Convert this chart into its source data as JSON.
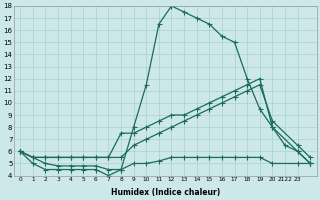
{
  "xlabel": "Humidex (Indice chaleur)",
  "bg_color": "#cde8e8",
  "line_color": "#1a6b5e",
  "grid_color": "#aacfcf",
  "ylim": [
    4,
    18
  ],
  "xlim": [
    -0.5,
    23.5
  ],
  "yticks": [
    4,
    5,
    6,
    7,
    8,
    9,
    10,
    11,
    12,
    13,
    14,
    15,
    16,
    17,
    18
  ],
  "xtick_labels": [
    "0",
    "1",
    "2",
    "3",
    "4",
    "5",
    "6",
    "7",
    "8",
    "9",
    "10",
    "11",
    "12",
    "13",
    "14",
    "15",
    "16",
    "17",
    "18",
    "19",
    "20",
    "2122",
    "23"
  ],
  "line1_x": [
    0,
    1,
    2,
    3,
    4,
    5,
    6,
    7,
    8,
    9,
    10,
    11,
    12,
    13,
    14,
    15,
    16,
    17,
    18,
    19,
    20,
    21,
    22,
    23
  ],
  "line1_y": [
    6.0,
    5.0,
    4.5,
    4.5,
    4.5,
    4.5,
    4.5,
    4.0,
    4.5,
    8.0,
    11.5,
    16.5,
    18.0,
    17.5,
    17.0,
    16.5,
    15.5,
    15.0,
    12.0,
    9.5,
    8.0,
    6.5,
    6.0,
    5.0
  ],
  "line2_x": [
    0,
    1,
    2,
    3,
    4,
    5,
    6,
    7,
    8,
    9,
    10,
    11,
    12,
    13,
    14,
    15,
    16,
    17,
    18,
    19,
    20,
    22,
    23
  ],
  "line2_y": [
    6.0,
    5.5,
    5.5,
    5.5,
    5.5,
    5.5,
    5.5,
    5.5,
    7.5,
    7.5,
    8.0,
    8.5,
    9.0,
    9.0,
    9.5,
    10.0,
    10.5,
    11.0,
    11.5,
    12.0,
    8.0,
    6.0,
    5.0
  ],
  "line3_x": [
    0,
    1,
    2,
    3,
    4,
    5,
    6,
    7,
    8,
    9,
    10,
    11,
    12,
    13,
    14,
    15,
    16,
    17,
    18,
    19,
    20,
    22,
    23
  ],
  "line3_y": [
    6.0,
    5.5,
    5.5,
    5.5,
    5.5,
    5.5,
    5.5,
    5.5,
    5.5,
    6.5,
    7.0,
    7.5,
    8.0,
    8.5,
    9.0,
    9.5,
    10.0,
    10.5,
    11.0,
    11.5,
    8.5,
    6.5,
    5.5
  ],
  "line4_x": [
    0,
    1,
    2,
    3,
    4,
    5,
    6,
    7,
    8,
    9,
    10,
    11,
    12,
    13,
    14,
    15,
    16,
    17,
    18,
    19,
    20,
    22,
    23
  ],
  "line4_y": [
    6.0,
    5.5,
    5.0,
    4.8,
    4.8,
    4.8,
    4.8,
    4.5,
    4.5,
    5.0,
    5.0,
    5.2,
    5.5,
    5.5,
    5.5,
    5.5,
    5.5,
    5.5,
    5.5,
    5.5,
    5.0,
    5.0,
    5.0
  ]
}
